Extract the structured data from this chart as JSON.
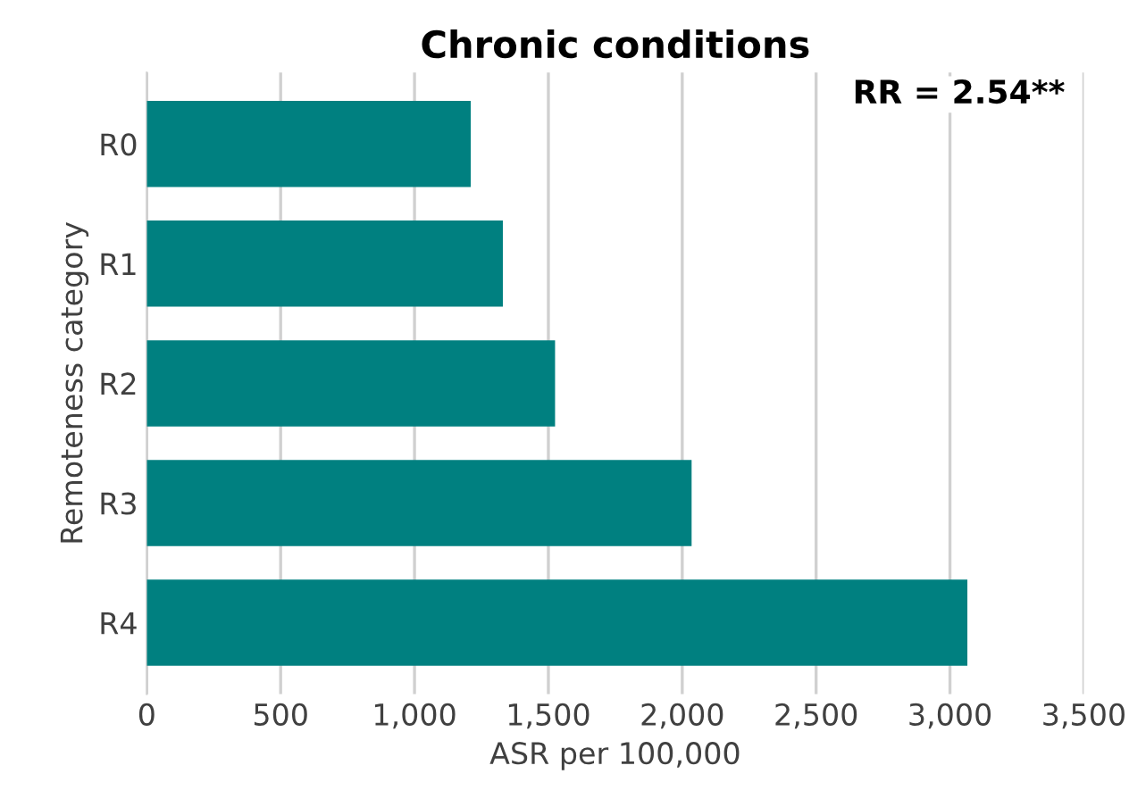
{
  "chart_data": {
    "type": "bar",
    "orientation": "horizontal",
    "title": "Chronic conditions",
    "xlabel": "ASR per 100,000",
    "ylabel": "Remoteness category",
    "categories": [
      "R0",
      "R1",
      "R2",
      "R3",
      "R4"
    ],
    "values": [
      1210,
      1330,
      1525,
      2035,
      3065
    ],
    "color": "#008080",
    "xlim": [
      0,
      3500
    ],
    "xticks": [
      0,
      {
        "value": 500,
        "label": "500"
      },
      {
        "value": 1000,
        "label": "1,000"
      },
      {
        "value": 1500,
        "label": "1,500"
      },
      {
        "value": 2000,
        "label": "2,000"
      },
      {
        "value": 2500,
        "label": "2,500"
      },
      {
        "value": 3000,
        "label": "3,000"
      },
      {
        "value": 3500,
        "label": "3,500"
      }
    ],
    "grid": "x",
    "annotations": [
      "RR = 2.54**"
    ]
  }
}
